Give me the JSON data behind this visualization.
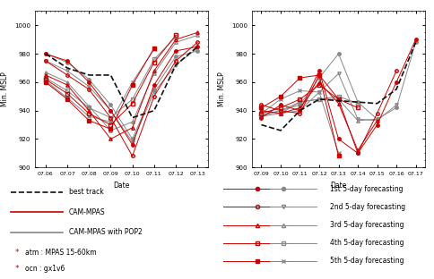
{
  "left": {
    "xlabel": "Date",
    "ylabel": "Min. MSLP",
    "ylim": [
      900,
      1010
    ],
    "yticks": [
      900,
      920,
      940,
      960,
      980,
      1000
    ],
    "xtick_labels": [
      "07.06",
      "07.07",
      "07.08",
      "07.09",
      "07.10",
      "07.11",
      "07.12",
      "07.13"
    ],
    "best_track": [
      980,
      970,
      965,
      965,
      935,
      940,
      972,
      985
    ],
    "cam_mpas_forecasts": [
      [
        980,
        975,
        960,
        940,
        916,
        958,
        982,
        985
      ],
      [
        975,
        965,
        955,
        935,
        908,
        950,
        975,
        988
      ],
      [
        965,
        958,
        940,
        920,
        928,
        968,
        990,
        995
      ],
      [
        962,
        952,
        938,
        930,
        945,
        974,
        993,
        null
      ],
      [
        960,
        948,
        933,
        927,
        958,
        984,
        null,
        null
      ]
    ],
    "pop2_forecasts": [
      [
        980,
        974,
        962,
        944,
        920,
        955,
        978,
        982
      ],
      [
        975,
        968,
        957,
        940,
        918,
        953,
        972,
        984
      ],
      [
        967,
        960,
        943,
        926,
        932,
        966,
        988,
        993
      ],
      [
        963,
        954,
        942,
        935,
        948,
        976,
        992,
        null
      ],
      [
        961,
        949,
        936,
        932,
        960,
        983,
        null,
        null
      ]
    ]
  },
  "right": {
    "xlabel": "Date",
    "ylabel": "Min. MSLP",
    "ylim": [
      900,
      1010
    ],
    "yticks": [
      900,
      920,
      940,
      960,
      980,
      1000
    ],
    "xtick_labels": [
      "07.09",
      "07.10",
      "07.11",
      "07.12",
      "07.13",
      "07.14",
      "07.15",
      "07.16",
      "07.17"
    ],
    "best_track": [
      930,
      926,
      940,
      948,
      947,
      946,
      945,
      955,
      988
    ],
    "cam_mpas_forecasts": [
      [
        935,
        944,
        940,
        968,
        920,
        910,
        930,
        960,
        990
      ],
      [
        944,
        940,
        938,
        965,
        948,
        910,
        938,
        968,
        null
      ],
      [
        940,
        938,
        942,
        960,
        945,
        912,
        933,
        null,
        null
      ],
      [
        938,
        942,
        948,
        958,
        948,
        942,
        null,
        null,
        null
      ],
      [
        942,
        950,
        963,
        965,
        908,
        null,
        null,
        null,
        null
      ]
    ],
    "pop2_forecasts": [
      [
        937,
        940,
        944,
        963,
        980,
        946,
        934,
        942,
        988
      ],
      [
        940,
        938,
        940,
        953,
        966,
        934,
        933,
        944,
        null
      ],
      [
        936,
        940,
        946,
        948,
        948,
        933,
        934,
        null,
        null
      ],
      [
        936,
        938,
        946,
        948,
        950,
        945,
        null,
        null,
        null
      ],
      [
        938,
        948,
        954,
        953,
        910,
        null,
        null,
        null,
        null
      ]
    ]
  },
  "legend_left": {
    "best_track_label": "best track",
    "cam_mpas_label": "CAM-MPAS",
    "pop2_label": "CAM-MPAS with POP2",
    "atm_note": "atm : MPAS 15-60km",
    "ocn_note": "ocn : gx1v6"
  },
  "legend_right": {
    "labels": [
      "1st 5-day forecasting",
      "2nd 5-day forecasting",
      "3rd 5-day forecasting",
      "4th 5-day forecasting",
      "5th 5-day forecasting"
    ],
    "red_markers": [
      "o",
      "o",
      "^",
      "s",
      "s"
    ],
    "gray_markers": [
      "o",
      "v",
      "^",
      "s",
      "x"
    ],
    "red_filled": [
      true,
      false,
      false,
      false,
      true
    ],
    "gray_filled": [
      true,
      false,
      false,
      false,
      false
    ]
  },
  "red_color": "#cc0000",
  "gray_color": "#888888",
  "black_color": "#111111",
  "line_lw": 0.7,
  "marker_size": 2.5
}
